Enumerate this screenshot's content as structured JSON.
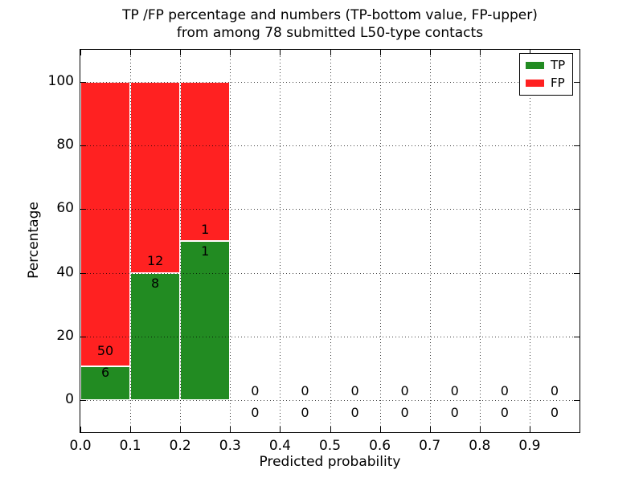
{
  "figure": {
    "title_line1": "TP /FP percentage and numbers (TP-bottom value, FP-upper)",
    "title_line2": "from among 78 submitted L50-type contacts",
    "xlabel": "Predicted probability",
    "ylabel": "Percentage"
  },
  "legend": {
    "items": [
      {
        "label": "TP",
        "color": "#228b22"
      },
      {
        "label": "FP",
        "color": "#ff2121"
      }
    ]
  },
  "chart_data": {
    "type": "bar",
    "stacked": true,
    "title": "TP /FP percentage and numbers (TP-bottom value, FP-upper) from among 78 submitted L50-type contacts",
    "xlabel": "Predicted probability",
    "ylabel": "Percentage",
    "xlim": [
      0,
      1.0
    ],
    "ylim": [
      -10,
      110
    ],
    "grid": true,
    "grid_style": "dotted",
    "legend_position": "upper right",
    "total_contacts": 78,
    "xticks": [
      "0.0",
      "0.1",
      "0.2",
      "0.3",
      "0.4",
      "0.5",
      "0.6",
      "0.7",
      "0.8",
      "0.9"
    ],
    "yticks": [
      0,
      20,
      40,
      60,
      80,
      100
    ],
    "series": [
      {
        "name": "TP",
        "color": "#228b22",
        "position": "bottom"
      },
      {
        "name": "FP",
        "color": "#ff2121",
        "position": "top"
      }
    ],
    "bins": [
      {
        "range": [
          0.0,
          0.1
        ],
        "tp": 6,
        "fp": 50,
        "tp_pct": 10.71,
        "fp_pct": 89.29,
        "fp_label_y": 15.5,
        "tp_label_y": 8.7
      },
      {
        "range": [
          0.1,
          0.2
        ],
        "tp": 8,
        "fp": 12,
        "tp_pct": 40,
        "fp_pct": 60,
        "fp_label_y": 43.6,
        "tp_label_y": 36.6
      },
      {
        "range": [
          0.2,
          0.3
        ],
        "tp": 1,
        "fp": 1,
        "tp_pct": 50,
        "fp_pct": 50,
        "fp_label_y": 53.6,
        "tp_label_y": 46.6
      },
      {
        "range": [
          0.3,
          0.4
        ],
        "tp": 0,
        "fp": 0,
        "tp_pct": 0,
        "fp_pct": 0,
        "fp_label_y": 2.8,
        "tp_label_y": -4.0
      },
      {
        "range": [
          0.4,
          0.5
        ],
        "tp": 0,
        "fp": 0,
        "tp_pct": 0,
        "fp_pct": 0,
        "fp_label_y": 2.8,
        "tp_label_y": -4.0
      },
      {
        "range": [
          0.5,
          0.6
        ],
        "tp": 0,
        "fp": 0,
        "tp_pct": 0,
        "fp_pct": 0,
        "fp_label_y": 2.8,
        "tp_label_y": -4.0
      },
      {
        "range": [
          0.6,
          0.7
        ],
        "tp": 0,
        "fp": 0,
        "tp_pct": 0,
        "fp_pct": 0,
        "fp_label_y": 2.8,
        "tp_label_y": -4.0
      },
      {
        "range": [
          0.7,
          0.8
        ],
        "tp": 0,
        "fp": 0,
        "tp_pct": 0,
        "fp_pct": 0,
        "fp_label_y": 2.8,
        "tp_label_y": -4.0
      },
      {
        "range": [
          0.8,
          0.9
        ],
        "tp": 0,
        "fp": 0,
        "tp_pct": 0,
        "fp_pct": 0,
        "fp_label_y": 2.8,
        "tp_label_y": -4.0
      },
      {
        "range": [
          0.9,
          1.0
        ],
        "tp": 0,
        "fp": 0,
        "tp_pct": 0,
        "fp_pct": 0,
        "fp_label_y": 2.8,
        "tp_label_y": -4.0
      }
    ]
  }
}
